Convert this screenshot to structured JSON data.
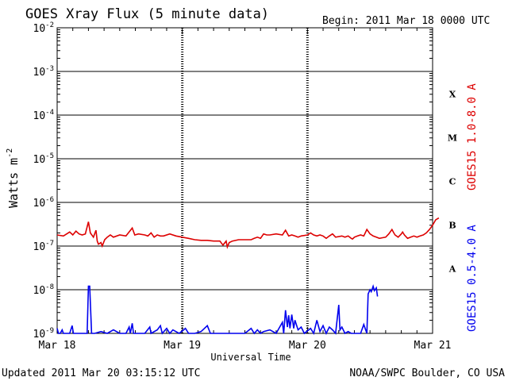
{
  "chart_data": {
    "type": "line",
    "title": "GOES Xray Flux (5 minute data)",
    "begin_label": "Begin:  2011 Mar 18 0000 UTC",
    "xlabel": "Universal Time",
    "ylabel": "Watts m",
    "ylabel_superscript": "-2",
    "y_scale": "log",
    "ylim": [
      1e-09,
      0.01
    ],
    "xlim": [
      "Mar 18 00:00",
      "Mar 21 00:00"
    ],
    "x_ticks": [
      "Mar 18",
      "Mar 19",
      "Mar 20",
      "Mar 21"
    ],
    "y_ticks": [
      {
        "base": "10",
        "exp": "-9"
      },
      {
        "base": "10",
        "exp": "-8"
      },
      {
        "base": "10",
        "exp": "-7"
      },
      {
        "base": "10",
        "exp": "-6"
      },
      {
        "base": "10",
        "exp": "-5"
      },
      {
        "base": "10",
        "exp": "-4"
      },
      {
        "base": "10",
        "exp": "-3"
      },
      {
        "base": "10",
        "exp": "-2"
      }
    ],
    "flare_classes": [
      "A",
      "B",
      "C",
      "M",
      "X"
    ],
    "grid": true,
    "series": [
      {
        "name": "GOES15 1.0-8.0 A",
        "color": "#dd0000",
        "points": [
          [
            0.0,
            1.8e-07
          ],
          [
            0.1,
            1.7e-07
          ],
          [
            0.2,
            2.1e-07
          ],
          [
            0.25,
            1.8e-07
          ],
          [
            0.3,
            2.2e-07
          ],
          [
            0.35,
            1.9e-07
          ],
          [
            0.4,
            1.8e-07
          ],
          [
            0.45,
            1.9e-07
          ],
          [
            0.5,
            3.6e-07
          ],
          [
            0.53,
            2e-07
          ],
          [
            0.58,
            1.6e-07
          ],
          [
            0.62,
            2.3e-07
          ],
          [
            0.64,
            1.3e-07
          ],
          [
            0.66,
            1.1e-07
          ],
          [
            0.7,
            1.2e-07
          ],
          [
            0.72,
            1e-07
          ],
          [
            0.76,
            1.4e-07
          ],
          [
            0.8,
            1.6e-07
          ],
          [
            0.85,
            1.8e-07
          ],
          [
            0.9,
            1.6e-07
          ],
          [
            1.0,
            1.8e-07
          ],
          [
            1.1,
            1.7e-07
          ],
          [
            1.2,
            2.6e-07
          ],
          [
            1.24,
            1.8e-07
          ],
          [
            1.3,
            1.9e-07
          ],
          [
            1.4,
            1.8e-07
          ],
          [
            1.45,
            1.7e-07
          ],
          [
            1.5,
            2e-07
          ],
          [
            1.55,
            1.6e-07
          ],
          [
            1.6,
            1.8e-07
          ],
          [
            1.65,
            1.7e-07
          ],
          [
            1.7,
            1.7e-07
          ],
          [
            1.8,
            1.9e-07
          ],
          [
            1.9,
            1.7e-07
          ],
          [
            2.0,
            1.6e-07
          ],
          [
            2.1,
            1.5e-07
          ],
          [
            2.2,
            1.4e-07
          ],
          [
            2.3,
            1.35e-07
          ],
          [
            2.4,
            1.35e-07
          ],
          [
            2.5,
            1.3e-07
          ],
          [
            2.6,
            1.3e-07
          ],
          [
            2.65,
            1.05e-07
          ],
          [
            2.7,
            1.3e-07
          ],
          [
            2.72,
            9.5e-08
          ],
          [
            2.75,
            1.2e-07
          ],
          [
            2.8,
            1.3e-07
          ],
          [
            2.9,
            1.4e-07
          ],
          [
            3.0,
            1.4e-07
          ],
          [
            3.1,
            1.4e-07
          ],
          [
            3.15,
            1.5e-07
          ],
          [
            3.2,
            1.6e-07
          ],
          [
            3.25,
            1.5e-07
          ],
          [
            3.3,
            1.9e-07
          ],
          [
            3.35,
            1.8e-07
          ],
          [
            3.4,
            1.8e-07
          ],
          [
            3.5,
            1.9e-07
          ],
          [
            3.6,
            1.8e-07
          ],
          [
            3.65,
            2.3e-07
          ],
          [
            3.7,
            1.7e-07
          ],
          [
            3.75,
            1.8e-07
          ],
          [
            3.8,
            1.7e-07
          ],
          [
            3.85,
            1.6e-07
          ],
          [
            3.9,
            1.7e-07
          ],
          [
            4.0,
            1.8e-07
          ],
          [
            4.05,
            2e-07
          ],
          [
            4.1,
            1.8e-07
          ],
          [
            4.15,
            1.7e-07
          ],
          [
            4.2,
            1.8e-07
          ],
          [
            4.25,
            1.7e-07
          ],
          [
            4.3,
            1.5e-07
          ],
          [
            4.35,
            1.7e-07
          ],
          [
            4.4,
            1.9e-07
          ],
          [
            4.45,
            1.6e-07
          ],
          [
            4.55,
            1.7e-07
          ],
          [
            4.6,
            1.6e-07
          ],
          [
            4.65,
            1.7e-07
          ],
          [
            4.7,
            1.5e-07
          ],
          [
            4.72,
            1.45e-07
          ],
          [
            4.75,
            1.6e-07
          ],
          [
            4.8,
            1.7e-07
          ],
          [
            4.85,
            1.8e-07
          ],
          [
            4.9,
            1.7e-07
          ],
          [
            4.95,
            2.4e-07
          ],
          [
            5.0,
            1.9e-07
          ],
          [
            5.05,
            1.7e-07
          ],
          [
            5.1,
            1.6e-07
          ],
          [
            5.15,
            1.5e-07
          ],
          [
            5.2,
            1.55e-07
          ],
          [
            5.25,
            1.6e-07
          ],
          [
            5.3,
            1.9e-07
          ],
          [
            5.35,
            2.4e-07
          ],
          [
            5.38,
            2e-07
          ],
          [
            5.4,
            1.8e-07
          ],
          [
            5.45,
            1.6e-07
          ],
          [
            5.5,
            1.9e-07
          ],
          [
            5.52,
            2.1e-07
          ],
          [
            5.55,
            1.8e-07
          ],
          [
            5.6,
            1.5e-07
          ],
          [
            5.65,
            1.6e-07
          ],
          [
            5.7,
            1.7e-07
          ],
          [
            5.75,
            1.6e-07
          ],
          [
            5.8,
            1.7e-07
          ],
          [
            5.85,
            1.8e-07
          ],
          [
            5.9,
            2e-07
          ],
          [
            5.95,
            2.4e-07
          ],
          [
            6.0,
            3e-07
          ],
          [
            6.05,
            4e-07
          ],
          [
            6.1,
            4.4e-07
          ]
        ]
      },
      {
        "name": "GOES15 0.5-4.0 A",
        "color": "#0000ee",
        "points": [
          [
            0.0,
            1.3e-09
          ],
          [
            0.02,
            1e-09
          ],
          [
            0.05,
            1e-09
          ],
          [
            0.08,
            1.2e-09
          ],
          [
            0.1,
            1e-09
          ],
          [
            0.2,
            1e-09
          ],
          [
            0.24,
            1.5e-09
          ],
          [
            0.26,
            1e-09
          ],
          [
            0.4,
            1e-09
          ],
          [
            0.48,
            1e-09
          ],
          [
            0.5,
            1.2e-08
          ],
          [
            0.52,
            1.2e-08
          ],
          [
            0.55,
            1e-09
          ],
          [
            0.6,
            1e-09
          ],
          [
            0.7,
            1.1e-09
          ],
          [
            0.8,
            1e-09
          ],
          [
            0.9,
            1.2e-09
          ],
          [
            1.0,
            1e-09
          ],
          [
            1.1,
            1e-09
          ],
          [
            1.15,
            1.4e-09
          ],
          [
            1.17,
            1e-09
          ],
          [
            1.2,
            1.7e-09
          ],
          [
            1.22,
            1e-09
          ],
          [
            1.4,
            1e-09
          ],
          [
            1.48,
            1.4e-09
          ],
          [
            1.5,
            1e-09
          ],
          [
            1.6,
            1.2e-09
          ],
          [
            1.65,
            1.5e-09
          ],
          [
            1.68,
            1e-09
          ],
          [
            1.75,
            1.3e-09
          ],
          [
            1.8,
            1e-09
          ],
          [
            1.85,
            1.2e-09
          ],
          [
            1.95,
            1e-09
          ],
          [
            2.05,
            1.3e-09
          ],
          [
            2.1,
            1e-09
          ],
          [
            2.2,
            1e-09
          ],
          [
            2.3,
            1.1e-09
          ],
          [
            2.4,
            1.5e-09
          ],
          [
            2.45,
            1e-09
          ],
          [
            2.6,
            1e-09
          ],
          [
            2.8,
            1e-09
          ],
          [
            3.0,
            1e-09
          ],
          [
            3.1,
            1.3e-09
          ],
          [
            3.15,
            1e-09
          ],
          [
            3.2,
            1.2e-09
          ],
          [
            3.25,
            1e-09
          ],
          [
            3.3,
            1.1e-09
          ],
          [
            3.4,
            1.2e-09
          ],
          [
            3.5,
            1e-09
          ],
          [
            3.6,
            1.8e-09
          ],
          [
            3.62,
            1e-09
          ],
          [
            3.65,
            3.4e-09
          ],
          [
            3.68,
            1.4e-09
          ],
          [
            3.7,
            2.6e-09
          ],
          [
            3.72,
            1.3e-09
          ],
          [
            3.75,
            2.7e-09
          ],
          [
            3.78,
            1.3e-09
          ],
          [
            3.8,
            2e-09
          ],
          [
            3.85,
            1.2e-09
          ],
          [
            3.9,
            1.4e-09
          ],
          [
            3.95,
            1e-09
          ],
          [
            4.05,
            1.3e-09
          ],
          [
            4.1,
            1e-09
          ],
          [
            4.15,
            2e-09
          ],
          [
            4.2,
            1.1e-09
          ],
          [
            4.25,
            1.5e-09
          ],
          [
            4.3,
            1e-09
          ],
          [
            4.35,
            1.4e-09
          ],
          [
            4.4,
            1.2e-09
          ],
          [
            4.45,
            1e-09
          ],
          [
            4.5,
            4.5e-09
          ],
          [
            4.52,
            1.2e-09
          ],
          [
            4.55,
            1.4e-09
          ],
          [
            4.6,
            1e-09
          ],
          [
            4.65,
            1.1e-09
          ],
          [
            4.7,
            1e-09
          ],
          [
            4.85,
            1e-09
          ],
          [
            4.9,
            1.6e-09
          ],
          [
            4.95,
            1e-09
          ],
          [
            4.97,
            8e-09
          ],
          [
            5.0,
            1e-08
          ],
          [
            5.02,
            9e-09
          ],
          [
            5.05,
            1.2e-08
          ],
          [
            5.07,
            9.5e-09
          ],
          [
            5.1,
            1.1e-08
          ],
          [
            5.12,
            7e-09
          ]
        ]
      }
    ]
  },
  "footer": {
    "updated": "Updated 2011 Mar 20 03:15:12 UTC",
    "credit": "NOAA/SWPC Boulder, CO USA"
  }
}
